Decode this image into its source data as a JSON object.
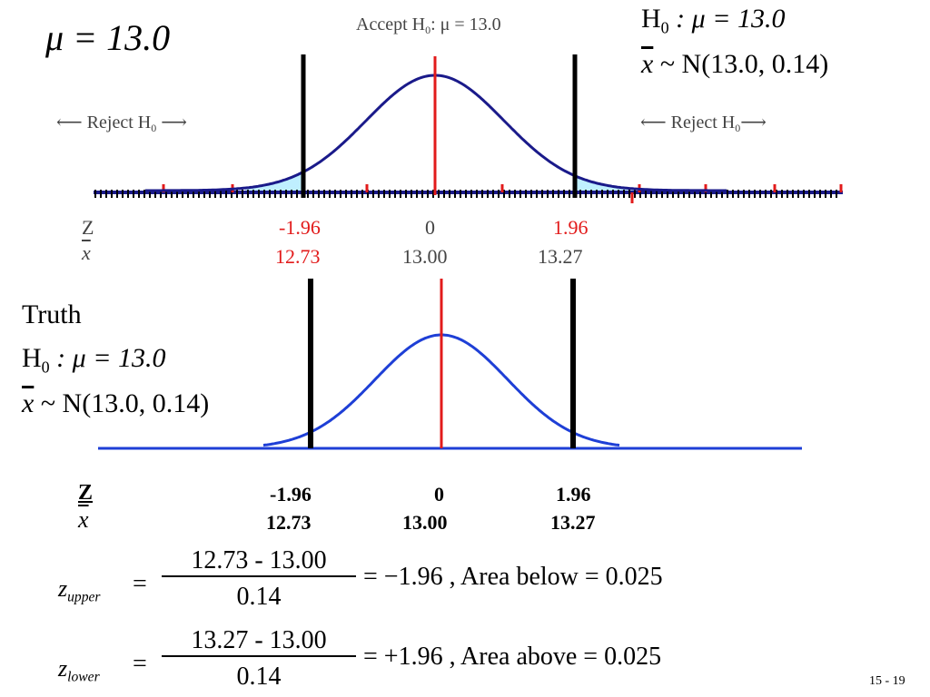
{
  "top_left_mu": "μ = 13.0",
  "top_panel": {
    "accept_label_prefix": "Accept H",
    "accept_label_sub": "0",
    "accept_label_suffix": ": μ = 13.0",
    "reject_left_prefix": "⟵ Reject H",
    "reject_left_sub": "0",
    "reject_left_suffix": " ⟶",
    "reject_right_prefix": "⟵ Reject H",
    "reject_right_sub": "0",
    "reject_right_suffix": "⟶",
    "z_row_label": "Z",
    "x_row_label": "x",
    "z_values": [
      "-1.96",
      "0",
      "1.96"
    ],
    "x_values": [
      "12.73",
      "13.00",
      "13.27"
    ],
    "colors": {
      "curve": "#1a1a8a",
      "center_line": "#e21b1b",
      "tail_fill": "#bfefff",
      "axis": "#1a1a8a"
    }
  },
  "top_right_hypothesis": {
    "h0_prefix": "H",
    "h0_sub": "0",
    "h0_suffix": " : μ = 13.0",
    "dist_x": "x",
    "dist_rest": " ~ N(13.0, 0.14)"
  },
  "truth": {
    "title": "Truth",
    "h0_prefix": "H",
    "h0_sub": "0",
    "h0_suffix": " : μ = 13.0",
    "dist_x": "x",
    "dist_rest": " ~ N(13.0, 0.14)",
    "colors": {
      "curve": "#1e3fd6",
      "center_line": "#e21b1b"
    }
  },
  "bottom_values": {
    "z_label": "Z",
    "x_label": "x",
    "z_values": [
      "-1.96",
      "0",
      "1.96"
    ],
    "x_values": [
      "12.73",
      "13.00",
      "13.27"
    ]
  },
  "equations": [
    {
      "var": "z",
      "sub": "upper",
      "equals": "=",
      "numerator": "12.73 - 13.00",
      "denominator": "0.14",
      "result": "= −1.96 , Area below = 0.025"
    },
    {
      "var": "z",
      "sub": "lower",
      "equals": "=",
      "numerator": "13.27 - 13.00",
      "denominator": "0.14",
      "result": "= +1.96 , Area above = 0.025"
    }
  ],
  "slide_number": "15 -  19"
}
